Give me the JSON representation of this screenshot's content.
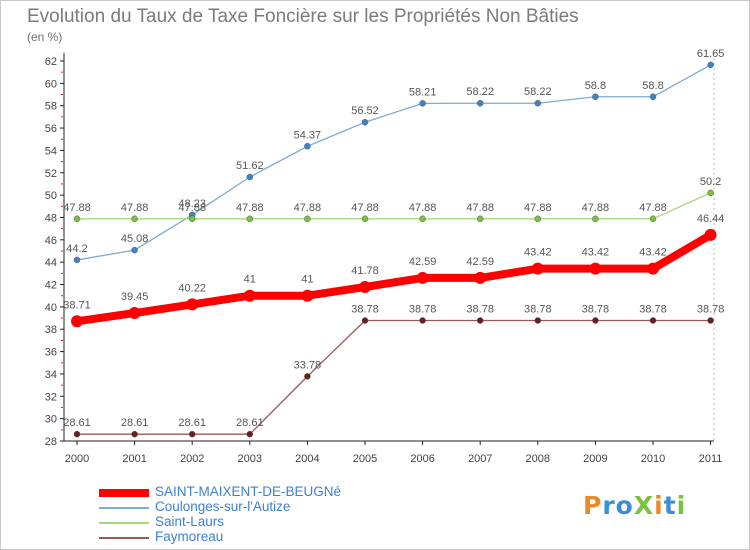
{
  "title": "Evolution du Taux de Taxe Foncière sur les Propriétés Non Bâties",
  "unit_label": "(en %)",
  "logo": {
    "text": "ProXiti",
    "colors": [
      "#e8892b",
      "#3b8ed8",
      "#3b8ed8",
      "#7cc242",
      "#e8892b",
      "#3b8ed8",
      "#7cc242"
    ]
  },
  "chart_data": {
    "type": "line",
    "title": "Evolution du Taux de Taxe Foncière sur les Propriétés Non Bâties",
    "ylabel": "(en %)",
    "xlabel": "",
    "x": [
      2000,
      2001,
      2002,
      2003,
      2004,
      2005,
      2006,
      2007,
      2008,
      2009,
      2010,
      2011
    ],
    "ylim": [
      28,
      62
    ],
    "yticks": [
      28,
      30,
      32,
      34,
      36,
      38,
      40,
      42,
      44,
      46,
      48,
      50,
      52,
      54,
      56,
      58,
      60,
      62
    ],
    "grid": false,
    "legend_position": "bottom-left",
    "series": [
      {
        "name": "SAINT-MAIXENT-DE-BEUGNé",
        "color": "#ff0000",
        "marker_color": "#ff0000",
        "emphasis": true,
        "values": [
          38.71,
          39.45,
          40.22,
          41,
          41,
          41.78,
          42.59,
          42.59,
          43.42,
          43.42,
          43.42,
          46.44
        ],
        "labels": [
          "38.71",
          "39.45",
          "40.22",
          "41",
          "41",
          "41.78",
          "42.59",
          "42.59",
          "43.42",
          "43.42",
          "43.42",
          "46.44"
        ]
      },
      {
        "name": "Coulonges-sur-l'Autize",
        "color": "#7fa9d6",
        "marker_color": "#3f83c4",
        "values": [
          44.2,
          45.08,
          48.23,
          51.62,
          54.37,
          56.52,
          58.21,
          58.22,
          58.22,
          58.8,
          58.8,
          61.65
        ],
        "labels": [
          "44.2",
          "45.08",
          "48.23",
          "51.62",
          "54.37",
          "56.52",
          "58.21",
          "58.22",
          "58.22",
          "58.8",
          "58.8",
          "61.65"
        ]
      },
      {
        "name": "Saint-Laurs",
        "color": "#a6d97b",
        "marker_color": "#7cc242",
        "values": [
          47.88,
          47.88,
          47.88,
          47.88,
          47.88,
          47.88,
          47.88,
          47.88,
          47.88,
          47.88,
          47.88,
          50.2
        ],
        "labels": [
          "47.88",
          "47.88",
          "47.88",
          "47.88",
          "47.88",
          "47.88",
          "47.88",
          "47.88",
          "47.88",
          "47.88",
          "47.88",
          "50.2"
        ]
      },
      {
        "name": "Faymoreau",
        "color": "#9b5a5a",
        "marker_color": "#6b1d1d",
        "values": [
          28.61,
          28.61,
          28.61,
          28.61,
          33.78,
          38.78,
          38.78,
          38.78,
          38.78,
          38.78,
          38.78,
          38.78
        ],
        "labels": [
          "28.61",
          "28.61",
          "28.61",
          "28.61",
          "33.78",
          "38.78",
          "38.78",
          "38.78",
          "38.78",
          "38.78",
          "38.78",
          "38.78"
        ]
      }
    ]
  }
}
